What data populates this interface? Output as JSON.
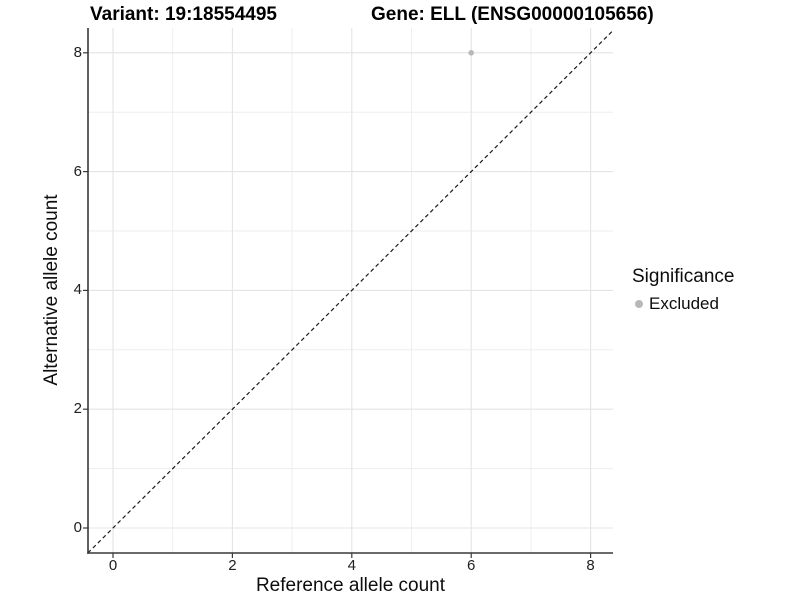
{
  "figure": {
    "title_left": "Variant: 19:18554495",
    "title_right": "Gene: ELL (ENSG00000105656)"
  },
  "chart_data": {
    "type": "scatter",
    "xlabel": "Reference allele count",
    "ylabel": "Alternative allele count",
    "xlim": [
      -0.42,
      8.42
    ],
    "ylim": [
      -0.42,
      8.42
    ],
    "x_ticks": [
      0,
      2,
      4,
      6,
      8
    ],
    "y_ticks": [
      0,
      2,
      4,
      6,
      8
    ],
    "grid": {
      "on": true,
      "minor_step": 1,
      "major_step": 2,
      "major_color": "#e4e4e4",
      "minor_color": "#eeeeee"
    },
    "reference_line": {
      "kind": "identity y = x",
      "style": "dashed",
      "color": "#1a1a1a"
    },
    "series": [
      {
        "name": "Excluded",
        "color": "#b8b8b8",
        "points": [
          [
            6,
            8
          ]
        ]
      }
    ],
    "legend": {
      "title": "Significance",
      "position": "right",
      "entries": [
        {
          "label": "Excluded",
          "color": "#b8b8b8",
          "marker": "circle"
        }
      ]
    }
  },
  "colors": {
    "axis_line": "#383838",
    "tick_mark": "#383838",
    "tick_label": "#202020",
    "text": "#0d0d0d",
    "background": "#ffffff"
  }
}
